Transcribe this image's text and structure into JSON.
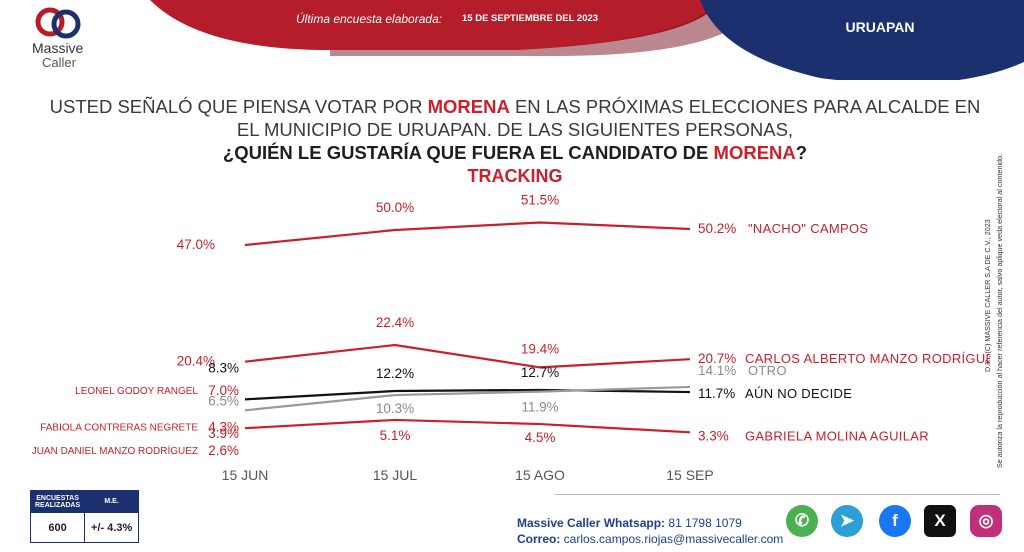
{
  "header": {
    "survey_label": "Última encuesta elaborada:",
    "survey_date": "15 DE SEPTIEMBRE DEL 2023",
    "city": "URUAPAN"
  },
  "logo": {
    "line1": "Massive",
    "line2": "Caller"
  },
  "title": {
    "l1a": "USTED SEÑALÓ QUE PIENSA VOTAR POR ",
    "l1b": "MORENA",
    "l1c": " EN LAS PRÓXIMAS ELECCIONES PARA ALCALDE EN",
    "l2": "EL MUNICIPIO DE URUAPAN.  DE LAS SIGUIENTES PERSONAS,",
    "l3a": "¿QUIÉN LE GUSTARÍA QUE FUERA EL CANDIDATO DE ",
    "l3b": "MORENA",
    "l3c": "?",
    "tracking": "TRACKING"
  },
  "side_note": {
    "line1": "D.R., (C) MASSIVE CALLER S.A DE C.V., 2023",
    "line2": "Se autoriza la reproducción al hacer referencia del autor, salvo aplique veda electoral al contenido."
  },
  "chart_data": {
    "type": "line",
    "x": [
      "15 JUN",
      "15 JUL",
      "15 AGO",
      "15 SEP"
    ],
    "series": [
      {
        "name": "\"NACHO\" CAMPOS",
        "values": [
          47.0,
          50.0,
          51.5,
          50.2
        ],
        "labels": [
          "47.0%",
          "50.0%",
          "51.5%",
          "50.2%"
        ],
        "color": "#c8202c"
      },
      {
        "name": "CARLOS ALBERTO MANZO RODRÍGUEZ",
        "values": [
          20.4,
          22.4,
          19.4,
          20.7
        ],
        "labels": [
          "20.4%",
          "22.4%",
          "19.4%",
          "20.7%"
        ],
        "color": "#c8202c"
      },
      {
        "name": "OTRO",
        "values": [
          null,
          null,
          null,
          14.1
        ],
        "labels": [
          "",
          "",
          "",
          "14.1%"
        ],
        "color": "#999999"
      },
      {
        "name": "AÚN NO DECIDE",
        "values": [
          null,
          null,
          null,
          11.7
        ],
        "labels": [
          "",
          "",
          "",
          "11.7%"
        ],
        "color": "#111111"
      },
      {
        "name": "GABRIELA MOLINA AGUILAR",
        "values": [
          null,
          null,
          null,
          3.3
        ],
        "labels": [
          "",
          "",
          "",
          "3.3%"
        ],
        "color": "#c8202c"
      },
      {
        "name": "LEONEL GODOY RANGEL",
        "values": [
          7.0,
          null,
          null,
          null
        ],
        "labels": [
          "7.0%",
          "",
          "",
          ""
        ],
        "color": "#c8202c"
      },
      {
        "name": "FABIOLA CONTRERAS NEGRETE",
        "values": [
          4.3,
          null,
          null,
          null
        ],
        "labels": [
          "4.3%",
          "",
          "",
          ""
        ],
        "color": "#c8202c"
      },
      {
        "name": "JUAN DANIEL MANZO RODRÍGUEZ",
        "values": [
          2.6,
          null,
          null,
          null
        ],
        "labels": [
          "2.6%",
          "",
          "",
          ""
        ],
        "color": "#c8202c"
      },
      {
        "name": "",
        "values": [
          8.3,
          12.2,
          12.7,
          null
        ],
        "labels": [
          "8.3%",
          "12.2%",
          "12.7%",
          ""
        ],
        "color": "#111111"
      },
      {
        "name": "",
        "values": [
          6.5,
          10.3,
          11.9,
          null
        ],
        "labels": [
          "6.5%",
          "10.3%",
          "11.9%",
          ""
        ],
        "color": "#999999"
      },
      {
        "name": "",
        "values": [
          3.9,
          5.1,
          4.5,
          null
        ],
        "labels": [
          "3.9%",
          "5.1%",
          "4.5%",
          ""
        ],
        "color": "#c8202c"
      }
    ],
    "title": "",
    "xlabel": "",
    "ylabel": "",
    "grid": false
  },
  "stats": {
    "h1": "ENCUESTAS REALIZADAS",
    "h2": "M.E.",
    "v1": "600",
    "v2": "+/- 4.3%"
  },
  "contact": {
    "whatsapp_label": "Massive Caller Whatsapp:",
    "whatsapp_number": " 81 1798 1079",
    "email_label": "Correo:",
    "email_value": " carlos.campos.riojas@massivecaller.com"
  },
  "social": [
    {
      "icon": "whatsapp-icon",
      "color": "#4caf50",
      "glyph": "✆"
    },
    {
      "icon": "telegram-icon",
      "color": "#2b9fd6",
      "glyph": "➤"
    },
    {
      "icon": "facebook-icon",
      "color": "#1877f2",
      "glyph": "f"
    },
    {
      "icon": "x-icon",
      "color": "#111111",
      "glyph": "X"
    },
    {
      "icon": "instagram-icon",
      "color": "#c0307a",
      "glyph": "◎"
    }
  ]
}
